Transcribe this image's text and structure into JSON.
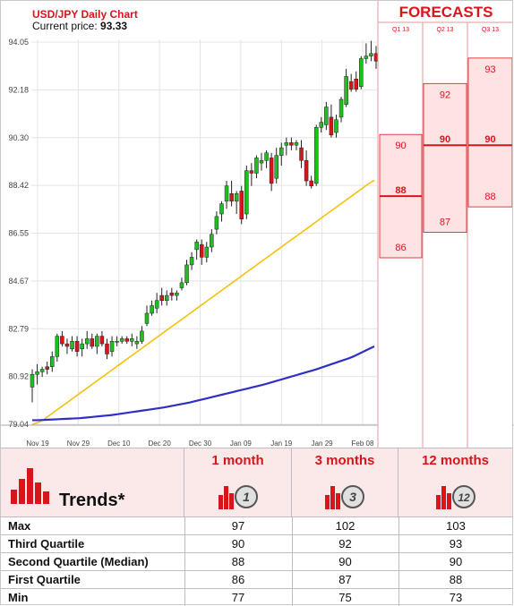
{
  "chart_title": "USD/JPY Daily Chart",
  "current_price": {
    "label": "Current price:",
    "value": "93.33"
  },
  "chart_data": [
    {
      "type": "candlestick",
      "title": "USD/JPY Daily Chart",
      "ylim": [
        79.04,
        94.05
      ],
      "y_ticks": [
        "94.05",
        "92.18",
        "90.30",
        "88.42",
        "86.55",
        "84.67",
        "82.79",
        "80.92",
        "79.04"
      ],
      "x_ticks": [
        "Nov 19",
        "Nov 29",
        "Dec 10",
        "Dec 20",
        "Dec 30",
        "Jan 09",
        "Jan 19",
        "Jan 29",
        "Feb 08"
      ],
      "grid": true,
      "ohlc": [
        [
          80.5,
          81.2,
          79.9,
          81.0
        ],
        [
          81.0,
          81.4,
          80.6,
          81.1
        ],
        [
          81.1,
          81.3,
          80.9,
          81.2
        ],
        [
          81.3,
          81.5,
          81.0,
          81.2
        ],
        [
          81.3,
          81.9,
          81.1,
          81.7
        ],
        [
          81.7,
          82.6,
          81.5,
          82.5
        ],
        [
          82.5,
          82.7,
          82.1,
          82.2
        ],
        [
          82.2,
          82.4,
          81.8,
          82.1
        ],
        [
          82.0,
          82.5,
          81.9,
          82.3
        ],
        [
          82.3,
          82.5,
          81.7,
          81.9
        ],
        [
          82.0,
          82.4,
          81.7,
          82.2
        ],
        [
          82.2,
          82.7,
          82.0,
          82.4
        ],
        [
          82.4,
          82.6,
          82.0,
          82.1
        ],
        [
          82.1,
          82.6,
          81.8,
          82.5
        ],
        [
          82.5,
          82.7,
          82.1,
          82.2
        ],
        [
          82.2,
          82.4,
          81.6,
          81.8
        ],
        [
          81.9,
          82.5,
          81.7,
          82.3
        ],
        [
          82.3,
          82.5,
          82.1,
          82.3
        ],
        [
          82.3,
          82.5,
          82.2,
          82.4
        ],
        [
          82.4,
          82.5,
          82.2,
          82.3
        ],
        [
          82.3,
          82.6,
          82.1,
          82.4
        ],
        [
          82.2,
          82.5,
          82.0,
          82.3
        ],
        [
          82.3,
          82.9,
          82.2,
          82.7
        ],
        [
          83.0,
          83.7,
          82.9,
          83.4
        ],
        [
          83.4,
          83.9,
          83.3,
          83.7
        ],
        [
          83.6,
          84.2,
          83.4,
          83.9
        ],
        [
          84.1,
          84.4,
          83.7,
          83.9
        ],
        [
          83.9,
          84.3,
          83.7,
          84.1
        ],
        [
          84.2,
          84.4,
          83.9,
          84.1
        ],
        [
          84.1,
          84.3,
          83.9,
          84.2
        ],
        [
          84.4,
          84.8,
          84.3,
          84.6
        ],
        [
          84.6,
          85.5,
          84.5,
          85.3
        ],
        [
          85.3,
          85.8,
          85.1,
          85.6
        ],
        [
          85.9,
          86.3,
          85.5,
          86.2
        ],
        [
          86.1,
          86.3,
          85.3,
          85.6
        ],
        [
          85.6,
          86.2,
          85.4,
          86.0
        ],
        [
          86.0,
          86.7,
          85.8,
          86.5
        ],
        [
          86.7,
          87.4,
          86.5,
          87.2
        ],
        [
          87.3,
          87.8,
          87.0,
          87.7
        ],
        [
          87.8,
          88.6,
          87.5,
          88.4
        ],
        [
          88.1,
          88.6,
          87.6,
          87.8
        ],
        [
          87.8,
          88.2,
          87.3,
          88.1
        ],
        [
          88.2,
          88.4,
          86.9,
          87.1
        ],
        [
          87.3,
          89.2,
          87.1,
          89.0
        ],
        [
          89.0,
          89.3,
          88.4,
          88.9
        ],
        [
          88.9,
          89.6,
          88.7,
          89.5
        ],
        [
          89.3,
          89.7,
          89.0,
          89.4
        ],
        [
          89.4,
          89.8,
          89.1,
          89.7
        ],
        [
          89.5,
          89.7,
          88.2,
          88.5
        ],
        [
          88.7,
          89.9,
          88.5,
          89.6
        ],
        [
          89.6,
          90.1,
          89.2,
          89.9
        ],
        [
          90.0,
          90.3,
          89.6,
          90.1
        ],
        [
          90.1,
          90.3,
          89.8,
          90.0
        ],
        [
          90.0,
          90.2,
          89.8,
          90.1
        ],
        [
          89.9,
          90.2,
          89.1,
          89.4
        ],
        [
          89.4,
          89.8,
          88.4,
          88.6
        ],
        [
          88.6,
          88.8,
          88.3,
          88.4
        ],
        [
          88.5,
          90.8,
          88.4,
          90.7
        ],
        [
          90.7,
          91.1,
          90.5,
          90.9
        ],
        [
          90.8,
          91.7,
          90.6,
          91.5
        ],
        [
          91.1,
          91.6,
          90.3,
          90.4
        ],
        [
          90.5,
          91.2,
          90.3,
          91.0
        ],
        [
          91.1,
          91.9,
          90.9,
          91.8
        ],
        [
          91.6,
          93.0,
          91.5,
          92.7
        ],
        [
          92.5,
          92.8,
          92.1,
          92.2
        ],
        [
          92.6,
          92.9,
          92.1,
          92.2
        ],
        [
          92.3,
          93.5,
          92.2,
          93.4
        ],
        [
          93.4,
          94.0,
          93.2,
          93.5
        ],
        [
          93.5,
          94.1,
          93.3,
          93.6
        ],
        [
          93.6,
          93.9,
          93.0,
          93.3
        ]
      ],
      "series": [
        {
          "kind": "moving-average",
          "color": "#f5c20a",
          "values": [
            79.04,
            79.1,
            79.2,
            79.35,
            79.5,
            79.65,
            79.8,
            79.95,
            80.1,
            80.25,
            80.4,
            80.55,
            80.7,
            80.85,
            81.0,
            81.15,
            81.3,
            81.45,
            81.6,
            81.75,
            81.9,
            82.05,
            82.2,
            82.35,
            82.5,
            82.65,
            82.8,
            82.95,
            83.1,
            83.25,
            83.4,
            83.55,
            83.7,
            83.85,
            84.0,
            84.15,
            84.3,
            84.45,
            84.6,
            84.75,
            84.9,
            85.05,
            85.2,
            85.35,
            85.5,
            85.65,
            85.8,
            85.95,
            86.1,
            86.25,
            86.4,
            86.55,
            86.7,
            86.85,
            87.0,
            87.15,
            87.3,
            87.45,
            87.6,
            87.75,
            87.9,
            88.05,
            88.2,
            88.35,
            88.5,
            88.62
          ]
        },
        {
          "kind": "moving-average",
          "color": "#2f2fc5",
          "values": [
            79.2,
            79.2,
            79.21,
            79.22,
            79.23,
            79.24,
            79.25,
            79.26,
            79.27,
            79.28,
            79.3,
            79.32,
            79.34,
            79.36,
            79.38,
            79.4,
            79.43,
            79.46,
            79.49,
            79.52,
            79.55,
            79.58,
            79.61,
            79.64,
            79.67,
            79.7,
            79.74,
            79.78,
            79.82,
            79.86,
            79.9,
            79.95,
            80.0,
            80.05,
            80.1,
            80.15,
            80.2,
            80.25,
            80.3,
            80.35,
            80.4,
            80.45,
            80.5,
            80.55,
            80.6,
            80.66,
            80.72,
            80.78,
            80.84,
            80.9,
            80.96,
            81.02,
            81.08,
            81.14,
            81.2,
            81.27,
            81.34,
            81.41,
            81.48,
            81.55,
            81.62,
            81.7,
            81.8,
            81.9,
            82.0,
            82.1
          ]
        }
      ]
    },
    {
      "type": "range-box",
      "title": "FORECASTS",
      "categories": [
        "Q1 13",
        "Q2 13",
        "Q3 13"
      ],
      "ylim": [
        79.04,
        94.05
      ],
      "series": [
        {
          "name": "high",
          "values": [
            90,
            92,
            93
          ]
        },
        {
          "name": "median",
          "values": [
            88,
            90,
            90
          ]
        },
        {
          "name": "low",
          "values": [
            86,
            87,
            88
          ]
        }
      ]
    }
  ],
  "trends": {
    "title": "Trends*",
    "columns": [
      {
        "label": "1 month",
        "badge": "1"
      },
      {
        "label": "3 months",
        "badge": "3"
      },
      {
        "label": "12 months",
        "badge": "12"
      }
    ],
    "rows": [
      {
        "name": "Max",
        "values": [
          "97",
          "102",
          "103"
        ]
      },
      {
        "name": "Third Quartile",
        "values": [
          "90",
          "92",
          "93"
        ]
      },
      {
        "name": "Second Quartile (Median)",
        "values": [
          "88",
          "90",
          "90"
        ]
      },
      {
        "name": "First Quartile",
        "values": [
          "86",
          "87",
          "88"
        ]
      },
      {
        "name": "Min",
        "values": [
          "77",
          "75",
          "73"
        ]
      }
    ],
    "colors": {
      "red": "#d9141b",
      "pink": "#fde3e4",
      "green": "#1fbf1f"
    }
  }
}
